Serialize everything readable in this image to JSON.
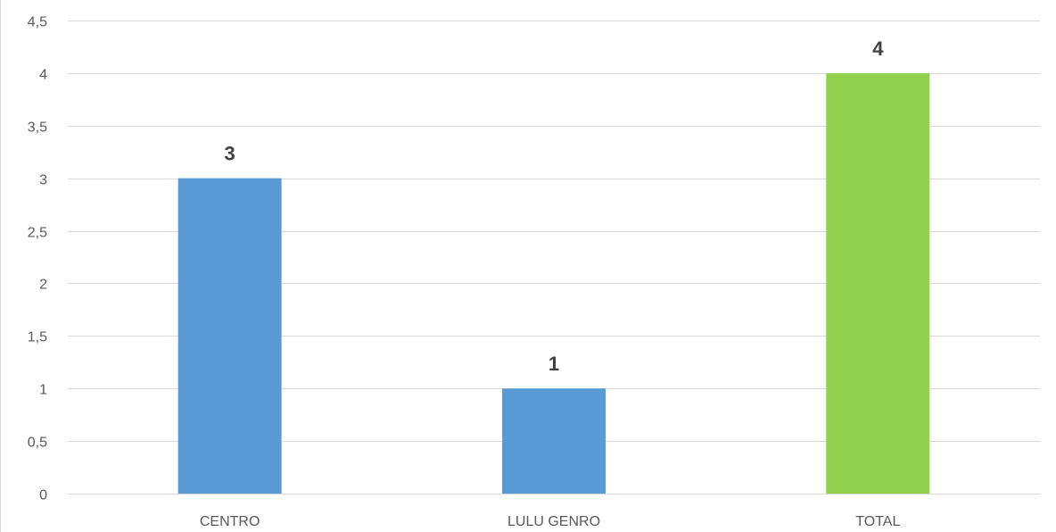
{
  "chart_data": {
    "type": "bar",
    "title": "",
    "xlabel": "",
    "ylabel": "",
    "categories": [
      "CENTRO",
      "LULU GENRO",
      "TOTAL"
    ],
    "values": [
      3,
      1,
      4
    ],
    "data_labels": [
      "3",
      "1",
      "4"
    ],
    "bar_colors": [
      "#5b9bd5",
      "#5b9bd5",
      "#92d050"
    ],
    "ylim": [
      0,
      4.5
    ],
    "y_ticks": [
      0,
      0.5,
      1,
      1.5,
      2,
      2.5,
      3,
      3.5,
      4,
      4.5
    ],
    "y_tick_labels": [
      "0",
      "0,5",
      "1",
      "1,5",
      "2",
      "2,5",
      "3",
      "3,5",
      "4",
      "4,5"
    ],
    "grid": true,
    "legend": "none"
  }
}
